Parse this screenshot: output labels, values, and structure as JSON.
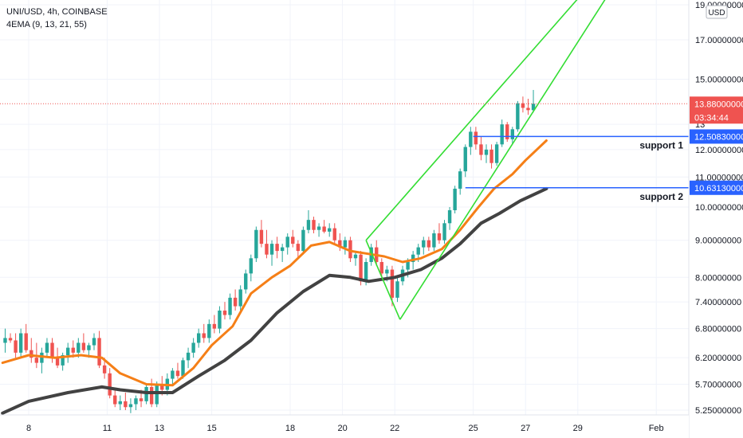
{
  "header": {
    "symbol_line": "UNI/USD, 4h, COINBASE",
    "indicator_line": "4EMA (9, 13, 21, 55)"
  },
  "currency_badge": "USD",
  "last_price_label": "13.88000000",
  "countdown_label": "03:34:44",
  "colors": {
    "up": "#26a69a",
    "down": "#ef5350",
    "ema_fast": "#f57f17",
    "ema_slow": "#424242",
    "channel": "#33dd33",
    "support": "#2962ff",
    "price_line": "#ef5350"
  },
  "chart_data": {
    "type": "candlestick",
    "y_scale": "log",
    "y_ticks": [
      "5.25000000",
      "5.70000000",
      "6.20000000",
      "6.80000000",
      "7.40000000",
      "8.00000000",
      "9.00000000",
      "10.00000000",
      "11.00000000",
      "12.00000000",
      "13",
      "15.00000000",
      "17.00000000",
      "19.00000000"
    ],
    "y_tick_values": [
      5.25,
      5.7,
      6.2,
      6.8,
      7.4,
      8.0,
      9.0,
      10.0,
      11.0,
      12.0,
      13.0,
      15.0,
      17.0,
      19.0
    ],
    "x_ticks": [
      "8",
      "11",
      "13",
      "15",
      "18",
      "20",
      "22",
      "25",
      "27",
      "29",
      "Feb"
    ],
    "x_tick_days": [
      8,
      11,
      13,
      15,
      18,
      20,
      22,
      25,
      27,
      29,
      32
    ],
    "support_levels": [
      {
        "label": "support 1",
        "price_label": "12.50830000",
        "value": 12.5083
      },
      {
        "label": "support 2",
        "price_label": "10.63130000",
        "value": 10.6313
      }
    ],
    "last_price": 13.88,
    "ema_fast": [
      [
        7.0,
        6.1
      ],
      [
        8.0,
        6.25
      ],
      [
        9.0,
        6.2
      ],
      [
        10.0,
        6.25
      ],
      [
        10.8,
        6.2
      ],
      [
        11.5,
        5.9
      ],
      [
        12.5,
        5.7
      ],
      [
        13.5,
        5.68
      ],
      [
        14.3,
        6.0
      ],
      [
        15.0,
        6.45
      ],
      [
        15.8,
        6.85
      ],
      [
        16.5,
        7.6
      ],
      [
        17.3,
        8.0
      ],
      [
        18.0,
        8.3
      ],
      [
        18.8,
        8.85
      ],
      [
        19.5,
        8.95
      ],
      [
        20.3,
        8.7
      ],
      [
        21.0,
        8.62
      ],
      [
        21.6,
        8.55
      ],
      [
        22.3,
        8.4
      ],
      [
        23.0,
        8.5
      ],
      [
        23.8,
        8.75
      ],
      [
        24.5,
        9.3
      ],
      [
        25.2,
        10.0
      ],
      [
        25.8,
        10.6
      ],
      [
        26.5,
        11.1
      ],
      [
        27.0,
        11.6
      ],
      [
        27.8,
        12.35
      ]
    ],
    "ema_slow": [
      [
        7.0,
        5.2
      ],
      [
        8.0,
        5.4
      ],
      [
        9.5,
        5.55
      ],
      [
        10.8,
        5.65
      ],
      [
        11.5,
        5.6
      ],
      [
        12.5,
        5.55
      ],
      [
        13.5,
        5.55
      ],
      [
        14.5,
        5.85
      ],
      [
        15.5,
        6.15
      ],
      [
        16.5,
        6.55
      ],
      [
        17.5,
        7.15
      ],
      [
        18.5,
        7.65
      ],
      [
        19.5,
        8.05
      ],
      [
        20.3,
        8.0
      ],
      [
        21.0,
        7.9
      ],
      [
        22.0,
        8.0
      ],
      [
        23.0,
        8.2
      ],
      [
        23.8,
        8.5
      ],
      [
        24.5,
        8.9
      ],
      [
        25.3,
        9.5
      ],
      [
        26.0,
        9.8
      ],
      [
        26.8,
        10.2
      ],
      [
        27.8,
        10.6
      ]
    ],
    "channel_lines": [
      [
        [
          20.9,
          9.0
        ],
        [
          29.6,
          20.5
        ]
      ],
      [
        [
          22.2,
          7.0
        ],
        [
          30.5,
          20.5
        ]
      ]
    ],
    "candles": [
      [
        7.1,
        6.5,
        6.8,
        6.3,
        6.6
      ],
      [
        7.3,
        6.6,
        6.7,
        6.5,
        6.55
      ],
      [
        7.5,
        6.55,
        6.7,
        6.2,
        6.3
      ],
      [
        7.7,
        6.3,
        6.8,
        6.2,
        6.7
      ],
      [
        7.9,
        6.7,
        6.9,
        6.3,
        6.35
      ],
      [
        8.1,
        6.35,
        6.6,
        6.1,
        6.2
      ],
      [
        8.3,
        6.2,
        6.5,
        6.0,
        6.1
      ],
      [
        8.5,
        6.1,
        6.4,
        5.9,
        6.3
      ],
      [
        8.7,
        6.3,
        6.6,
        6.2,
        6.5
      ],
      [
        8.9,
        6.5,
        6.6,
        6.1,
        6.2
      ],
      [
        9.1,
        6.2,
        6.4,
        6.0,
        6.05
      ],
      [
        9.3,
        6.05,
        6.3,
        5.95,
        6.25
      ],
      [
        9.5,
        6.25,
        6.5,
        6.1,
        6.4
      ],
      [
        9.7,
        6.4,
        6.55,
        6.2,
        6.3
      ],
      [
        9.9,
        6.3,
        6.6,
        6.2,
        6.5
      ],
      [
        10.1,
        6.5,
        6.7,
        6.3,
        6.35
      ],
      [
        10.3,
        6.35,
        6.5,
        6.2,
        6.45
      ],
      [
        10.5,
        6.45,
        6.7,
        6.35,
        6.6
      ],
      [
        10.7,
        6.6,
        6.75,
        6.0,
        6.05
      ],
      [
        10.9,
        6.05,
        6.2,
        5.8,
        5.9
      ],
      [
        11.1,
        5.9,
        6.0,
        5.45,
        5.5
      ],
      [
        11.3,
        5.5,
        5.6,
        5.3,
        5.35
      ],
      [
        11.5,
        5.35,
        5.5,
        5.25,
        5.4
      ],
      [
        11.7,
        5.4,
        5.55,
        5.25,
        5.3
      ],
      [
        11.9,
        5.3,
        5.45,
        5.2,
        5.35
      ],
      [
        12.1,
        5.35,
        5.5,
        5.25,
        5.45
      ],
      [
        12.3,
        5.45,
        5.6,
        5.3,
        5.4
      ],
      [
        12.5,
        5.4,
        5.7,
        5.35,
        5.65
      ],
      [
        12.7,
        5.65,
        5.8,
        5.3,
        5.35
      ],
      [
        12.9,
        5.35,
        5.75,
        5.3,
        5.7
      ],
      [
        13.1,
        5.7,
        5.85,
        5.5,
        5.6
      ],
      [
        13.3,
        5.6,
        5.9,
        5.5,
        5.8
      ],
      [
        13.5,
        5.8,
        6.0,
        5.7,
        5.95
      ],
      [
        13.7,
        5.95,
        6.1,
        5.8,
        5.85
      ],
      [
        13.9,
        5.85,
        6.2,
        5.8,
        6.15
      ],
      [
        14.1,
        6.15,
        6.4,
        6.0,
        6.3
      ],
      [
        14.3,
        6.3,
        6.6,
        6.2,
        6.5
      ],
      [
        14.5,
        6.5,
        6.8,
        6.4,
        6.7
      ],
      [
        14.7,
        6.7,
        6.9,
        6.5,
        6.6
      ],
      [
        14.9,
        6.6,
        7.0,
        6.5,
        6.9
      ],
      [
        15.1,
        6.9,
        7.1,
        6.7,
        6.8
      ],
      [
        15.3,
        6.8,
        7.3,
        6.7,
        7.2
      ],
      [
        15.5,
        7.2,
        7.4,
        7.0,
        7.1
      ],
      [
        15.7,
        7.1,
        7.6,
        7.0,
        7.5
      ],
      [
        15.9,
        7.5,
        7.7,
        7.2,
        7.3
      ],
      [
        16.1,
        7.3,
        7.8,
        7.2,
        7.7
      ],
      [
        16.3,
        7.7,
        8.2,
        7.6,
        8.1
      ],
      [
        16.5,
        8.1,
        8.6,
        7.9,
        8.5
      ],
      [
        16.7,
        8.5,
        9.4,
        8.4,
        9.3
      ],
      [
        16.9,
        9.3,
        9.6,
        8.8,
        8.9
      ],
      [
        17.1,
        8.9,
        9.3,
        8.5,
        8.6
      ],
      [
        17.3,
        8.6,
        9.0,
        8.3,
        8.9
      ],
      [
        17.5,
        8.9,
        9.1,
        8.5,
        8.7
      ],
      [
        17.7,
        8.7,
        8.9,
        8.4,
        8.8
      ],
      [
        17.9,
        8.8,
        9.2,
        8.6,
        9.1
      ],
      [
        18.1,
        9.1,
        9.3,
        8.8,
        8.9
      ],
      [
        18.3,
        8.9,
        9.0,
        8.5,
        8.7
      ],
      [
        18.5,
        8.7,
        9.4,
        8.6,
        9.3
      ],
      [
        18.7,
        9.3,
        9.9,
        9.2,
        9.6
      ],
      [
        18.9,
        9.6,
        9.7,
        9.2,
        9.3
      ],
      [
        19.1,
        9.3,
        9.5,
        9.1,
        9.4
      ],
      [
        19.3,
        9.4,
        9.6,
        9.2,
        9.25
      ],
      [
        19.5,
        9.25,
        9.5,
        9.1,
        9.35
      ],
      [
        19.7,
        9.35,
        9.5,
        8.9,
        9.0
      ],
      [
        19.9,
        9.0,
        9.2,
        8.7,
        8.8
      ],
      [
        20.1,
        8.8,
        9.1,
        8.6,
        9.0
      ],
      [
        20.3,
        9.0,
        9.1,
        8.4,
        8.5
      ],
      [
        20.5,
        8.5,
        8.7,
        8.3,
        8.6
      ],
      [
        20.7,
        8.6,
        8.7,
        7.8,
        7.9
      ],
      [
        20.9,
        7.9,
        8.5,
        7.8,
        8.4
      ],
      [
        21.1,
        8.4,
        8.9,
        8.3,
        8.8
      ],
      [
        21.3,
        8.8,
        9.0,
        8.3,
        8.4
      ],
      [
        21.5,
        8.4,
        8.5,
        8.0,
        8.1
      ],
      [
        21.7,
        8.1,
        8.3,
        7.9,
        8.2
      ],
      [
        21.9,
        8.2,
        8.3,
        7.3,
        7.5
      ],
      [
        22.1,
        7.5,
        8.0,
        7.4,
        7.9
      ],
      [
        22.3,
        7.9,
        8.3,
        7.8,
        8.2
      ],
      [
        22.5,
        8.2,
        8.5,
        8.0,
        8.4
      ],
      [
        22.7,
        8.4,
        8.7,
        8.2,
        8.6
      ],
      [
        22.9,
        8.6,
        8.9,
        8.4,
        8.8
      ],
      [
        23.1,
        8.8,
        9.1,
        8.6,
        9.0
      ],
      [
        23.3,
        9.0,
        9.1,
        8.7,
        8.8
      ],
      [
        23.5,
        8.8,
        9.3,
        8.7,
        9.2
      ],
      [
        23.7,
        9.2,
        9.5,
        8.9,
        9.0
      ],
      [
        23.9,
        9.0,
        9.6,
        8.9,
        9.5
      ],
      [
        24.1,
        9.5,
        10.0,
        9.3,
        9.9
      ],
      [
        24.3,
        9.9,
        10.7,
        9.8,
        10.6
      ],
      [
        24.5,
        10.6,
        11.3,
        10.4,
        11.2
      ],
      [
        24.7,
        11.2,
        12.2,
        11.0,
        12.1
      ],
      [
        24.9,
        12.1,
        12.9,
        11.8,
        12.7
      ],
      [
        25.1,
        12.7,
        12.9,
        12.0,
        12.2
      ],
      [
        25.3,
        12.2,
        12.5,
        11.6,
        11.8
      ],
      [
        25.5,
        11.8,
        12.2,
        11.5,
        12.0
      ],
      [
        25.7,
        12.0,
        12.2,
        11.3,
        11.5
      ],
      [
        25.9,
        11.5,
        12.3,
        11.4,
        12.2
      ],
      [
        26.1,
        12.2,
        13.2,
        12.1,
        13.0
      ],
      [
        26.3,
        13.0,
        13.1,
        12.3,
        12.4
      ],
      [
        26.5,
        12.4,
        12.9,
        12.2,
        12.8
      ],
      [
        26.7,
        12.8,
        14.0,
        12.7,
        13.9
      ],
      [
        26.9,
        13.9,
        14.2,
        13.5,
        13.7
      ],
      [
        27.1,
        13.7,
        14.1,
        13.4,
        13.6
      ],
      [
        27.3,
        13.6,
        14.5,
        13.5,
        13.88
      ]
    ]
  }
}
